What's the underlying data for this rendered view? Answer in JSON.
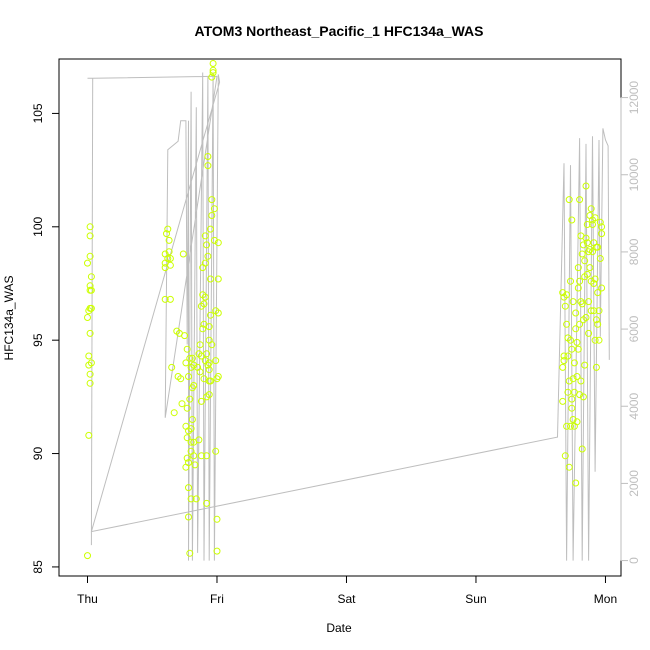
{
  "chart_data": {
    "type": "scatter",
    "title": "ATOM3 Northeast_Pacific_1 HFC134a_WAS",
    "xlabel": "Date",
    "ylabel": "HFC134a_WAS",
    "x_ticks": [
      "Thu",
      "Fri",
      "Sat",
      "Sun",
      "Mon"
    ],
    "xlim_days": [
      -0.22,
      4.12
    ],
    "ylim": [
      84.6,
      107.4
    ],
    "y_ticks": [
      85,
      90,
      95,
      100,
      105
    ],
    "y2lim": [
      -400,
      13000
    ],
    "y2_ticks": [
      0,
      2000,
      4000,
      6000,
      8000,
      10000,
      12000
    ],
    "grid": false,
    "colors": {
      "points": "#ccff00",
      "line": "#bebebe",
      "axis": "#000000",
      "right_axis": "#bebebe"
    },
    "series": [
      {
        "kind": "points",
        "axis": "left",
        "x_days": [
          0.0,
          0.0,
          0.0,
          0.01,
          0.01,
          0.01,
          0.01,
          0.02,
          0.02,
          0.02,
          0.02,
          0.02,
          0.02,
          0.02,
          0.02,
          0.02,
          0.03,
          0.03,
          0.03,
          0.03,
          0.6,
          0.6,
          0.6,
          0.6,
          0.61,
          0.62,
          0.62,
          0.63,
          0.63,
          0.64,
          0.64,
          0.64,
          0.65,
          0.67,
          0.69,
          0.7,
          0.71,
          0.72,
          0.73,
          0.74,
          0.75,
          0.76,
          0.76,
          0.76,
          0.77,
          0.77,
          0.77,
          0.77,
          0.78,
          0.78,
          0.78,
          0.78,
          0.78,
          0.79,
          0.79,
          0.79,
          0.8,
          0.8,
          0.8,
          0.8,
          0.8,
          0.81,
          0.81,
          0.81,
          0.82,
          0.82,
          0.82,
          0.82,
          0.83,
          0.84,
          0.85,
          0.86,
          0.86,
          0.87,
          0.87,
          0.88,
          0.88,
          0.88,
          0.88,
          0.89,
          0.89,
          0.89,
          0.9,
          0.9,
          0.9,
          0.91,
          0.91,
          0.91,
          0.91,
          0.92,
          0.92,
          0.92,
          0.92,
          0.92,
          0.93,
          0.93,
          0.93,
          0.93,
          0.94,
          0.94,
          0.94,
          0.94,
          0.94,
          0.94,
          0.95,
          0.95,
          0.95,
          0.95,
          0.96,
          0.96,
          0.96,
          0.96,
          0.97,
          0.97,
          0.97,
          0.98,
          0.98,
          0.99,
          0.99,
          0.99,
          1.0,
          1.0,
          1.0,
          1.01,
          1.01,
          1.01,
          1.01,
          3.67,
          3.67,
          3.67,
          3.68,
          3.68,
          3.68,
          3.69,
          3.69,
          3.7,
          3.7,
          3.7,
          3.71,
          3.71,
          3.71,
          3.72,
          3.72,
          3.72,
          3.73,
          3.73,
          3.73,
          3.74,
          3.74,
          3.74,
          3.74,
          3.75,
          3.75,
          3.75,
          3.76,
          3.76,
          3.76,
          3.77,
          3.77,
          3.77,
          3.78,
          3.78,
          3.78,
          3.79,
          3.79,
          3.79,
          3.8,
          3.8,
          3.8,
          3.8,
          3.81,
          3.81,
          3.81,
          3.82,
          3.82,
          3.82,
          3.83,
          3.83,
          3.83,
          3.84,
          3.84,
          3.84,
          3.85,
          3.85,
          3.85,
          3.86,
          3.86,
          3.86,
          3.87,
          3.87,
          3.87,
          3.88,
          3.88,
          3.88,
          3.89,
          3.89,
          3.89,
          3.9,
          3.9,
          3.9,
          3.91,
          3.91,
          3.91,
          3.92,
          3.92,
          3.92,
          3.93,
          3.93,
          3.93,
          3.94,
          3.94,
          3.94,
          3.95,
          3.95,
          3.96,
          3.96,
          3.97,
          3.97,
          3.97
        ],
        "y": [
          98.4,
          96.0,
          85.5,
          96.3,
          94.3,
          93.9,
          90.8,
          97.4,
          97.2,
          96.4,
          95.3,
          93.5,
          93.1,
          98.7,
          100.0,
          99.6,
          97.8,
          97.2,
          96.4,
          94.0,
          98.4,
          98.8,
          96.8,
          98.2,
          99.7,
          99.9,
          98.6,
          99.4,
          98.9,
          98.6,
          96.8,
          98.3,
          93.8,
          91.8,
          95.4,
          93.4,
          95.3,
          93.3,
          92.2,
          98.8,
          95.2,
          94.0,
          91.2,
          89.4,
          90.7,
          92.0,
          89.8,
          94.6,
          91.0,
          93.4,
          89.6,
          87.2,
          88.5,
          92.4,
          94.2,
          85.6,
          93.8,
          88.0,
          90.5,
          90.1,
          91.1,
          92.9,
          91.5,
          94.2,
          93.0,
          89.9,
          90.5,
          93.9,
          89.5,
          88.0,
          93.8,
          94.4,
          90.6,
          93.6,
          94.8,
          96.5,
          92.3,
          94.3,
          89.9,
          98.2,
          97.0,
          95.5,
          96.6,
          93.3,
          95.7,
          99.6,
          98.4,
          94.1,
          96.9,
          99.2,
          92.5,
          94.4,
          87.8,
          89.9,
          102.7,
          103.1,
          93.9,
          98.7,
          95.0,
          95.6,
          93.7,
          92.6,
          93.2,
          94.0,
          96.1,
          97.7,
          93.2,
          99.9,
          100.5,
          94.8,
          101.2,
          106.6,
          107.2,
          106.9,
          106.8,
          100.8,
          99.4,
          96.3,
          94.1,
          90.1,
          93.3,
          87.1,
          85.7,
          93.4,
          96.2,
          97.7,
          99.3,
          97.1,
          92.3,
          93.8,
          94.1,
          96.9,
          94.3,
          96.5,
          89.9,
          97.0,
          95.7,
          91.2,
          95.1,
          94.3,
          92.7,
          101.2,
          93.2,
          89.4,
          97.6,
          95.0,
          91.2,
          100.3,
          92.4,
          94.6,
          92.0,
          93.3,
          91.5,
          96.7,
          94.0,
          92.7,
          91.2,
          88.7,
          96.2,
          95.5,
          93.4,
          91.4,
          94.9,
          98.2,
          97.3,
          94.6,
          95.7,
          92.6,
          97.6,
          101.2,
          99.6,
          96.7,
          93.2,
          90.2,
          96.6,
          98.8,
          92.5,
          95.9,
          99.2,
          93.9,
          97.8,
          98.5,
          96.0,
          101.8,
          99.5,
          97.9,
          100.1,
          99.3,
          96.7,
          98.9,
          95.3,
          100.5,
          98.2,
          99.0,
          97.6,
          96.3,
          100.8,
          100.1,
          98.9,
          100.3,
          99.3,
          96.3,
          97.5,
          95.0,
          100.4,
          97.7,
          95.9,
          99.1,
          93.8,
          99.1,
          97.1,
          95.7,
          95.0,
          96.3,
          100.2,
          98.6,
          99.7,
          100.0,
          97.3
        ]
      },
      {
        "kind": "line",
        "axis": "right",
        "points": [
          [
            0.0,
            12500
          ],
          [
            0.0,
            12500
          ],
          [
            0.02,
            12500
          ],
          [
            0.04,
            12500
          ],
          [
            0.03,
            400
          ],
          [
            0.04,
            12500
          ],
          [
            0.95,
            12550
          ],
          [
            1.0,
            12550
          ],
          [
            0.6,
            3700
          ],
          [
            0.62,
            10650
          ],
          [
            0.7,
            10870
          ],
          [
            0.72,
            11400
          ],
          [
            0.76,
            11400
          ],
          [
            0.77,
            5600
          ],
          [
            0.78,
            11400
          ],
          [
            0.78,
            0
          ],
          [
            0.8,
            12150
          ],
          [
            0.81,
            0
          ],
          [
            0.84,
            11750
          ],
          [
            0.85,
            200
          ],
          [
            0.89,
            12650
          ],
          [
            0.9,
            0
          ],
          [
            0.93,
            12550
          ],
          [
            0.94,
            0
          ],
          [
            0.97,
            12650
          ],
          [
            0.98,
            0
          ],
          [
            1.01,
            12600
          ],
          [
            1.02,
            12400
          ],
          [
            0.03,
            750
          ],
          [
            3.63,
            3200
          ],
          [
            3.68,
            10300
          ],
          [
            3.7,
            0
          ],
          [
            3.73,
            10250
          ],
          [
            3.75,
            0
          ],
          [
            3.8,
            10950
          ],
          [
            3.82,
            0
          ],
          [
            3.85,
            10800
          ],
          [
            3.87,
            0
          ],
          [
            3.9,
            11000
          ],
          [
            3.92,
            2300
          ],
          [
            3.95,
            10900
          ],
          [
            3.96,
            5800
          ],
          [
            3.98,
            11200
          ],
          [
            4.0,
            10900
          ],
          [
            4.02,
            10750
          ],
          [
            4.03,
            5200
          ]
        ]
      }
    ]
  }
}
